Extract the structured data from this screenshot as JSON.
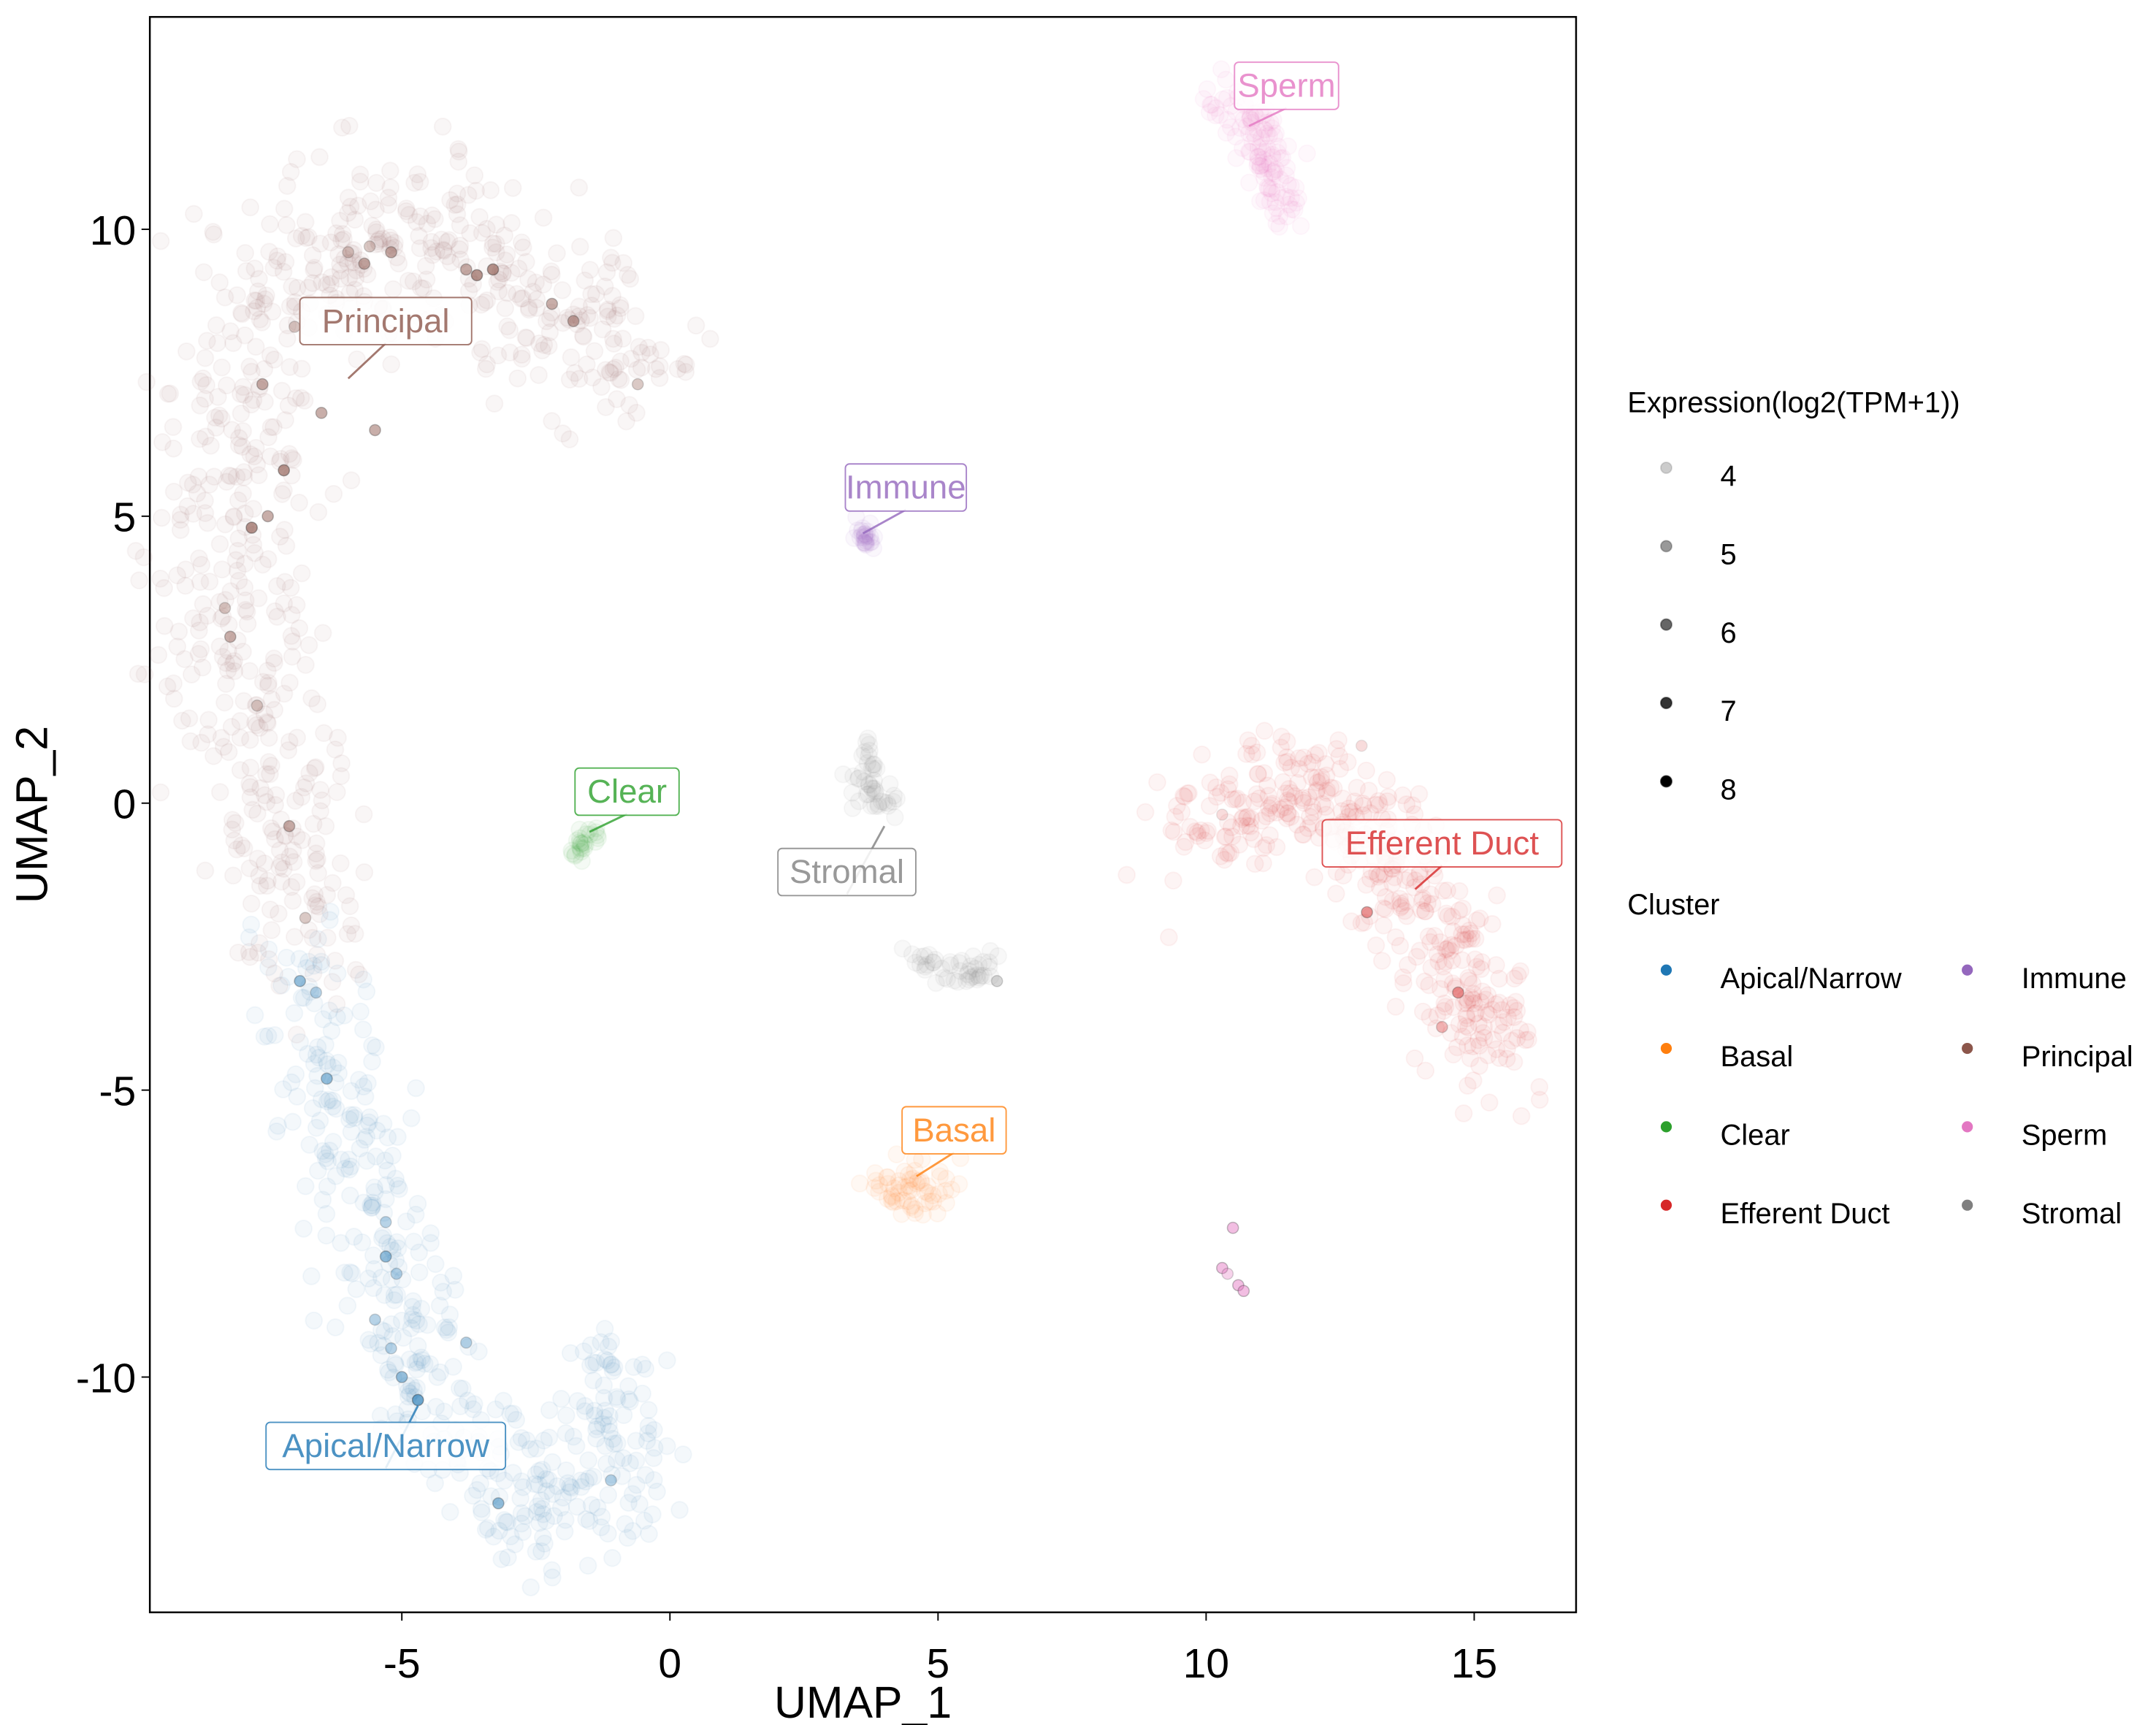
{
  "chart_data": {
    "type": "scatter",
    "xlabel": "UMAP_1",
    "ylabel": "UMAP_2",
    "xlim": [
      -9.7,
      16.9
    ],
    "ylim": [
      -14.1,
      13.7
    ],
    "x_ticks": [
      -5,
      0,
      5,
      10,
      15
    ],
    "y_ticks": [
      -10,
      -5,
      0,
      5,
      10
    ],
    "grid": false,
    "expression_legend": {
      "title": "Expression(log2(TPM+1))",
      "levels": [
        4,
        5,
        6,
        7,
        8
      ],
      "level_labels": [
        "4",
        "5",
        "6",
        "7",
        "8"
      ],
      "level_opacity": [
        0.2,
        0.4,
        0.6,
        0.8,
        1.0
      ]
    },
    "cluster_legend": {
      "title": "Cluster",
      "placement": "right"
    },
    "clusters": [
      {
        "name": "Apical/Narrow",
        "color": "#1f77b4",
        "label_pos": [
          -5.3,
          -11.2
        ],
        "anchor": [
          -4.7,
          -10.5
        ],
        "n": 450,
        "spread": 0.55,
        "path": [
          [
            -6.9,
            -2.7
          ],
          [
            -6.3,
            -4.9
          ],
          [
            -5.5,
            -7.3
          ],
          [
            -4.7,
            -9.7
          ],
          [
            -3.4,
            -11.6
          ],
          [
            -2.3,
            -12.6
          ],
          [
            -1.1,
            -12.1
          ],
          [
            -1.1,
            -9.7
          ]
        ],
        "expressed": [
          [
            -6.9,
            -3.1,
            6
          ],
          [
            -6.6,
            -3.3,
            5
          ],
          [
            -6.4,
            -4.8,
            6
          ],
          [
            -5.3,
            -7.3,
            5
          ],
          [
            -5.3,
            -7.9,
            6
          ],
          [
            -5.1,
            -8.2,
            5
          ],
          [
            -5.5,
            -9.0,
            5
          ],
          [
            -5.2,
            -9.5,
            5
          ],
          [
            -5.0,
            -10.0,
            6
          ],
          [
            -4.7,
            -10.4,
            7
          ],
          [
            -3.8,
            -9.4,
            5
          ],
          [
            -3.2,
            -12.2,
            6
          ],
          [
            -1.1,
            -11.8,
            5
          ]
        ]
      },
      {
        "name": "Basal",
        "color": "#ff7f0e",
        "label_pos": [
          5.3,
          -5.7
        ],
        "anchor": [
          4.6,
          -6.5
        ],
        "n": 60,
        "spread": 0.3,
        "path": [
          [
            4.0,
            -6.8
          ],
          [
            4.8,
            -6.6
          ]
        ],
        "expressed": []
      },
      {
        "name": "Clear",
        "color": "#2ca02c",
        "label_pos": [
          -0.8,
          0.2
        ],
        "anchor": [
          -1.5,
          -0.5
        ],
        "n": 25,
        "spread": 0.12,
        "path": [
          [
            -1.8,
            -0.8
          ],
          [
            -1.4,
            -0.5
          ]
        ],
        "expressed": []
      },
      {
        "name": "Efferent Duct",
        "color": "#d62728",
        "label_pos": [
          14.4,
          -0.7
        ],
        "anchor": [
          13.9,
          -1.5
        ],
        "n": 420,
        "spread": 0.5,
        "path": [
          [
            9.6,
            -0.5
          ],
          [
            11.5,
            0.2
          ],
          [
            13.1,
            -0.5
          ],
          [
            14.4,
            -2.4
          ],
          [
            15.4,
            -4.4
          ]
        ],
        "expressed": [
          [
            13.0,
            -1.9,
            6
          ],
          [
            14.7,
            -3.3,
            6
          ],
          [
            14.4,
            -3.9,
            5
          ],
          [
            10.3,
            -0.2,
            4
          ],
          [
            12.9,
            1.0,
            4
          ]
        ]
      },
      {
        "name": "Immune",
        "color": "#9467bd",
        "label_pos": [
          4.4,
          5.5
        ],
        "anchor": [
          3.6,
          4.7
        ],
        "n": 25,
        "spread": 0.1,
        "path": [
          [
            3.5,
            4.7
          ],
          [
            3.7,
            4.6
          ]
        ],
        "expressed": []
      },
      {
        "name": "Principal",
        "color": "#8c564b",
        "label_pos": [
          -5.3,
          8.4
        ],
        "anchor": [
          -6.0,
          7.4
        ],
        "n": 700,
        "spread": 0.75,
        "path": [
          [
            -0.6,
            7.3
          ],
          [
            -1.6,
            8.4
          ],
          [
            -4.0,
            9.6
          ],
          [
            -6.0,
            9.8
          ],
          [
            -7.4,
            8.7
          ],
          [
            -8.0,
            6.7
          ],
          [
            -8.2,
            4.3
          ],
          [
            -8.1,
            2.4
          ],
          [
            -7.4,
            0.5
          ],
          [
            -7.1,
            -1.5
          ],
          [
            -6.8,
            -2.4
          ]
        ],
        "expressed": [
          [
            -6.0,
            9.6,
            5
          ],
          [
            -5.6,
            9.7,
            5
          ],
          [
            -5.7,
            9.4,
            6
          ],
          [
            -5.2,
            9.6,
            6
          ],
          [
            -3.8,
            9.3,
            6
          ],
          [
            -3.6,
            9.2,
            7
          ],
          [
            -3.3,
            9.3,
            7
          ],
          [
            -2.2,
            8.7,
            6
          ],
          [
            -1.8,
            8.4,
            6
          ],
          [
            -0.6,
            7.3,
            5
          ],
          [
            -7.6,
            7.3,
            6
          ],
          [
            -7.0,
            8.3,
            5
          ],
          [
            -6.5,
            6.8,
            6
          ],
          [
            -5.5,
            6.5,
            6
          ],
          [
            -7.2,
            5.8,
            7
          ],
          [
            -7.8,
            4.8,
            7
          ],
          [
            -7.5,
            5.0,
            6
          ],
          [
            -8.3,
            3.4,
            5
          ],
          [
            -8.2,
            2.9,
            6
          ],
          [
            -7.7,
            1.7,
            5
          ],
          [
            -7.1,
            -0.4,
            6
          ],
          [
            -6.8,
            -2.0,
            5
          ]
        ]
      },
      {
        "name": "Sperm",
        "color": "#e377c2",
        "label_pos": [
          11.5,
          12.5
        ],
        "anchor": [
          10.8,
          11.8
        ],
        "n": 120,
        "spread": 0.22,
        "path": [
          [
            10.3,
            12.2
          ],
          [
            10.9,
            11.8
          ],
          [
            11.4,
            10.4
          ]
        ],
        "expressed": [
          [
            10.5,
            -7.4,
            6
          ],
          [
            10.3,
            -8.1,
            6
          ],
          [
            10.4,
            -8.2,
            5
          ],
          [
            10.6,
            -8.4,
            6
          ],
          [
            10.7,
            -8.5,
            6
          ]
        ]
      },
      {
        "name": "Stromal",
        "color": "#7f7f7f",
        "label_pos": [
          3.3,
          -1.2
        ],
        "anchor": [
          4.0,
          -0.4
        ],
        "n": 90,
        "spread": 0.17,
        "path": [
          [
            3.6,
            0.9
          ],
          [
            3.7,
            0.3
          ],
          [
            4.1,
            -0.3
          ]
        ],
        "extra_paths": [
          [
            [
              4.5,
              -2.8
            ],
            [
              5.3,
              -2.9
            ],
            [
              6.1,
              -3.0
            ]
          ]
        ],
        "expressed": [
          [
            6.1,
            -3.1,
            5
          ]
        ]
      }
    ]
  }
}
